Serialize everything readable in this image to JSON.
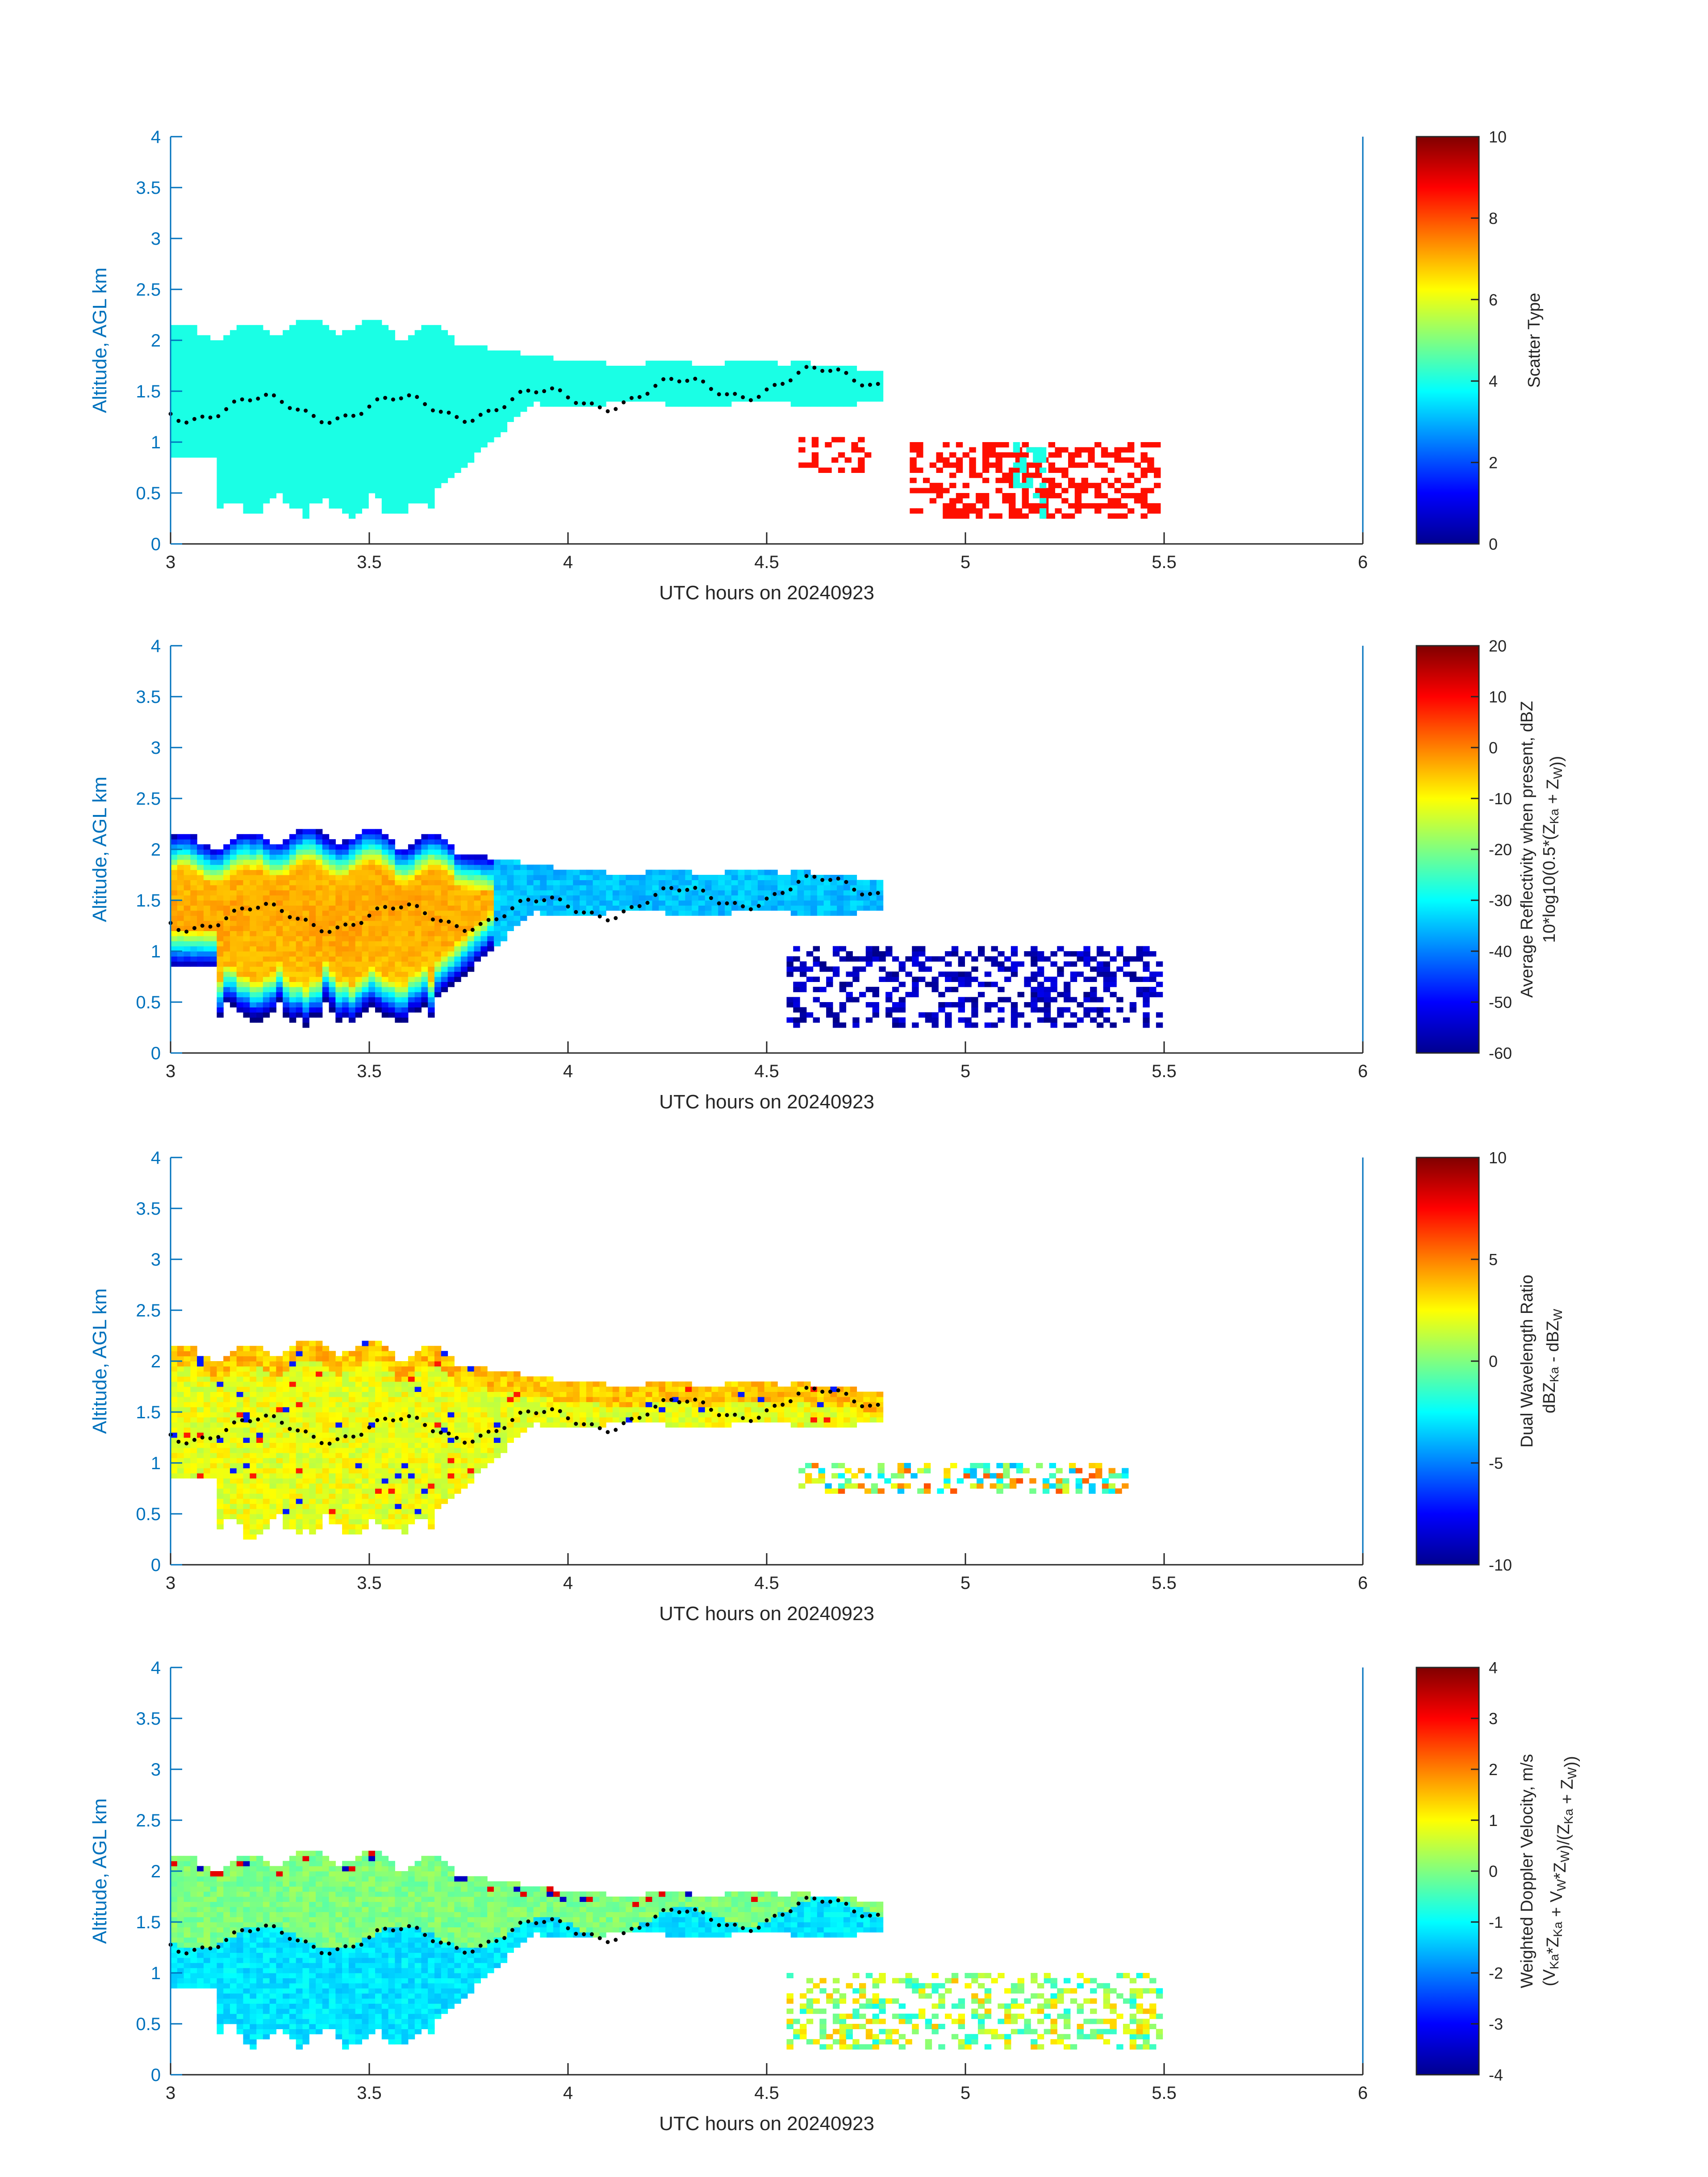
{
  "colors": {
    "axis": "#0072BD",
    "text": "#262626",
    "jet_low": "#00008F",
    "jet_high": "#800000",
    "marker": "#000000"
  },
  "figure": {
    "xlabel": "UTC hours on 20240923",
    "ylabel": "Altitude, AGL km"
  },
  "chart_data": [
    {
      "type": "heatmap",
      "xlabel": "UTC hours on 20240923",
      "ylabel": "Altitude, AGL km",
      "xlim": [
        3,
        6
      ],
      "ylim": [
        0,
        4
      ],
      "xticks": [
        "3",
        "3.5",
        "4",
        "4.5",
        "5",
        "5.5",
        "6"
      ],
      "yticks": [
        "0",
        "0.5",
        "1",
        "1.5",
        "2",
        "2.5",
        "3",
        "3.5",
        "4"
      ],
      "colormap": "jet",
      "colorbar": {
        "label": "Scatter Type",
        "range": [
          0,
          10
        ],
        "ticks": [
          "0",
          "2",
          "4",
          "6",
          "8",
          "10"
        ]
      },
      "field": "scatter_type",
      "main_layer": {
        "x_range": [
          3.0,
          4.79
        ],
        "value": 4.0
      },
      "secondary": [
        {
          "x_range": [
            4.58,
            4.75
          ],
          "y_range": [
            0.7,
            1.05
          ],
          "value": 8.6
        },
        {
          "x_range": [
            4.86,
            5.48
          ],
          "y_range": [
            0.25,
            1.0
          ],
          "value": 8.6
        },
        {
          "x_range": [
            5.12,
            5.2
          ],
          "y_range": [
            0.25,
            1.0
          ],
          "value": 4.0
        }
      ]
    },
    {
      "type": "heatmap",
      "xlabel": "UTC hours on 20240923",
      "ylabel": "Altitude, AGL km",
      "xlim": [
        3,
        6
      ],
      "ylim": [
        0,
        4
      ],
      "xticks": [
        "3",
        "3.5",
        "4",
        "4.5",
        "5",
        "5.5",
        "6"
      ],
      "yticks": [
        "0",
        "0.5",
        "1",
        "1.5",
        "2",
        "2.5",
        "3",
        "3.5",
        "4"
      ],
      "colormap": "jet",
      "colorbar": {
        "label": "Average Reflectivity when present, dBZ",
        "label2": "10*log10(0.5*(Z",
        "label2_sub1": "Ka",
        "label2_mid": " + Z",
        "label2_sub2": "W",
        "label2_end": "))",
        "range": [
          -60,
          20
        ],
        "ticks": [
          "-60",
          "-50",
          "-40",
          "-30",
          "-20",
          "-10",
          "0",
          "10",
          "20"
        ]
      },
      "field": "reflectivity",
      "main_layer": {
        "x_range": [
          3.0,
          4.79
        ],
        "core_value": -5,
        "edge_value": -55
      },
      "secondary": [
        {
          "x_range": [
            4.55,
            5.48
          ],
          "y_range": [
            0.25,
            1.05
          ],
          "value": -57
        }
      ]
    },
    {
      "type": "heatmap",
      "xlabel": "UTC hours on 20240923",
      "ylabel": "Altitude, AGL km",
      "xlim": [
        3,
        6
      ],
      "ylim": [
        0,
        4
      ],
      "xticks": [
        "3",
        "3.5",
        "4",
        "4.5",
        "5",
        "5.5",
        "6"
      ],
      "yticks": [
        "0",
        "0.5",
        "1",
        "1.5",
        "2",
        "2.5",
        "3",
        "3.5",
        "4"
      ],
      "colormap": "jet",
      "colorbar": {
        "label": "Dual Wavelength Ratio",
        "label2": "dBZ",
        "label2_sub1": "Ka",
        "label2_mid": " - dBZ",
        "label2_sub2": "W",
        "label2_end": "",
        "range": [
          -10,
          10
        ],
        "ticks": [
          "-10",
          "-5",
          "0",
          "5",
          "10"
        ]
      },
      "field": "dwr",
      "main_layer": {
        "x_range": [
          3.0,
          4.79
        ],
        "value": 2.5
      },
      "secondary": [
        {
          "x_range": [
            4.58,
            5.4
          ],
          "y_range": [
            0.7,
            1.0
          ],
          "value": 1.0
        }
      ]
    },
    {
      "type": "heatmap",
      "xlabel": "UTC hours on 20240923",
      "ylabel": "Altitude, AGL km",
      "xlim": [
        3,
        6
      ],
      "ylim": [
        0,
        4
      ],
      "xticks": [
        "3",
        "3.5",
        "4",
        "4.5",
        "5",
        "5.5",
        "6"
      ],
      "yticks": [
        "0",
        "0.5",
        "1",
        "1.5",
        "2",
        "2.5",
        "3",
        "3.5",
        "4"
      ],
      "colormap": "jet",
      "colorbar": {
        "label": "Weighted Doppler Velocity, m/s",
        "label2": "(V",
        "label2_sub1": "Ka",
        "label2_mid": "*Z",
        "label2_sub2": "Ka",
        "label2_end": " + V",
        "label2_sub3": "W",
        "label2_end2": "*Z",
        "label2_sub4": "W",
        "label2_end3": ")/(Z",
        "label2_sub5": "Ka",
        "label2_end4": " + Z",
        "label2_sub6": "W",
        "label2_end5": "))",
        "range": [
          -4,
          4
        ],
        "ticks": [
          "-4",
          "-3",
          "-2",
          "-1",
          "0",
          "1",
          "2",
          "3",
          "4"
        ]
      },
      "field": "velocity",
      "main_layer": {
        "x_range": [
          3.0,
          4.79
        ],
        "upper_value": 0.0,
        "lower_value": -1.2
      },
      "secondary": [
        {
          "x_range": [
            4.55,
            5.48
          ],
          "y_range": [
            0.25,
            1.0
          ],
          "value": 0.3
        }
      ]
    }
  ]
}
